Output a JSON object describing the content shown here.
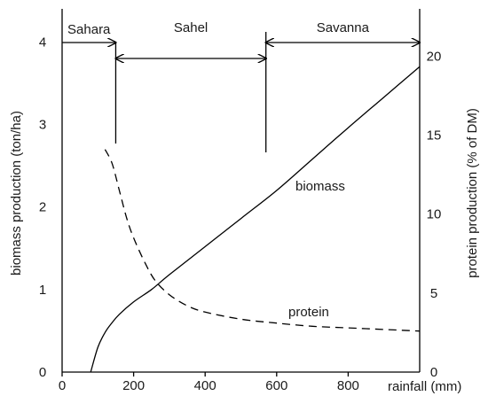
{
  "chart_data": {
    "type": "line",
    "x_axis": {
      "label": "rainfall (mm)",
      "ticks": [
        0,
        200,
        400,
        600,
        800
      ],
      "range": [
        0,
        1000
      ]
    },
    "y_axis_left": {
      "label": "biomass production (ton/ha)",
      "ticks": [
        0,
        1,
        2,
        3,
        4
      ],
      "range": [
        0,
        4.4
      ]
    },
    "y_axis_right": {
      "label": "protein production (% of DM)",
      "ticks": [
        0,
        5,
        10,
        15,
        20
      ],
      "range": [
        0,
        23
      ]
    },
    "series": [
      {
        "name": "biomass",
        "axis": "left",
        "style": "solid",
        "x": [
          80,
          100,
          120,
          140,
          160,
          200,
          250,
          300,
          400,
          500,
          600,
          700,
          800,
          900,
          1000
        ],
        "y": [
          0,
          0.3,
          0.48,
          0.6,
          0.7,
          0.85,
          1.0,
          1.18,
          1.52,
          1.86,
          2.2,
          2.58,
          2.96,
          3.33,
          3.7
        ]
      },
      {
        "name": "protein",
        "axis": "right",
        "style": "dashed",
        "x": [
          120,
          140,
          160,
          180,
          200,
          230,
          260,
          300,
          350,
          400,
          500,
          600,
          700,
          800,
          900,
          1000
        ],
        "y": [
          14.1,
          13.2,
          11.5,
          9.8,
          8.5,
          7.0,
          5.8,
          4.9,
          4.2,
          3.8,
          3.35,
          3.1,
          2.9,
          2.8,
          2.7,
          2.6
        ]
      }
    ],
    "zones": [
      {
        "label": "Sahara",
        "from": 0,
        "to": 150
      },
      {
        "label": "Sahel",
        "from": 150,
        "to": 570
      },
      {
        "label": "Savanna",
        "from": 570,
        "to": 1000
      }
    ],
    "annotations": {
      "biomass": "biomass",
      "protein": "protein"
    },
    "grid": false
  }
}
